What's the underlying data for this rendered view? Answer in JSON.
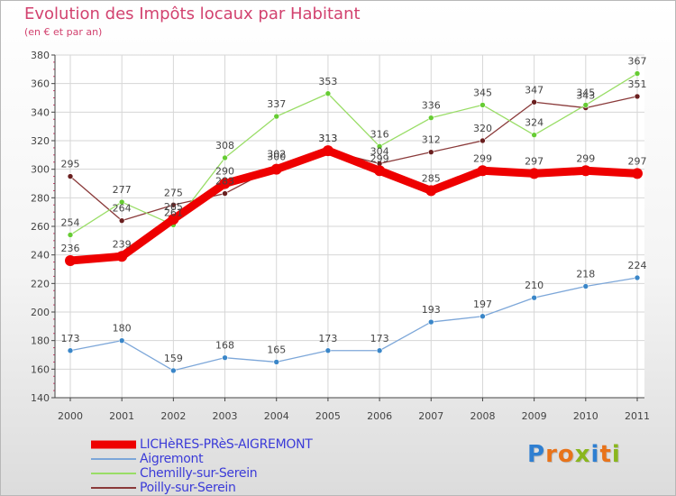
{
  "title": "Evolution des Impôts locaux par Habitant",
  "subtitle": "(en € et par an)",
  "logo": {
    "text": "Proxiti",
    "letters": [
      "P",
      "r",
      "o",
      "x",
      "i",
      "t",
      "i"
    ]
  },
  "colors": {
    "title": "#d2426f",
    "axis": "#444444",
    "grid": "#d6d6d6",
    "label": "#444444",
    "legend_text": "#3b3bd8",
    "logo": [
      "#2f7fd1",
      "#e8731a",
      "#e8731a",
      "#8ab61e",
      "#2f7fd1",
      "#e8731a",
      "#8ab61e"
    ]
  },
  "chart_data": {
    "type": "line",
    "title": "Evolution des Impôts locaux par Habitant",
    "subtitle": "(en € et par an)",
    "xlabel": "",
    "ylabel": "",
    "x": [
      "2000",
      "2001",
      "2002",
      "2003",
      "2004",
      "2005",
      "2006",
      "2007",
      "2008",
      "2009",
      "2010",
      "2011"
    ],
    "ylim": [
      140,
      380
    ],
    "yticks": [
      140,
      160,
      180,
      200,
      220,
      240,
      260,
      280,
      300,
      320,
      340,
      360,
      380
    ],
    "grid": true,
    "legend_position": "bottom-left",
    "series": [
      {
        "name": "LICHèRES-PRèS-AIGREMONT",
        "color": "#ee0000",
        "marker_color": "#ee0000",
        "style": "thick",
        "values": [
          236,
          239,
          265,
          290,
          300,
          313,
          299,
          285,
          299,
          297,
          299,
          297
        ],
        "labels": [
          "236",
          "239",
          "265",
          "290",
          "300",
          "313",
          "299",
          "285",
          "299",
          "297",
          "299",
          "297"
        ]
      },
      {
        "name": "Aigremont",
        "color": "#7da7d9",
        "marker_color": "#3a86c8",
        "style": "thin",
        "values": [
          173,
          180,
          159,
          168,
          165,
          173,
          173,
          193,
          197,
          210,
          218,
          224
        ],
        "labels": [
          "173",
          "180",
          "159",
          "168",
          "165",
          "173",
          "173",
          "193",
          "197",
          "210",
          "218",
          "224"
        ]
      },
      {
        "name": "Chemilly-sur-Serein",
        "color": "#99dd66",
        "marker_color": "#66cc33",
        "style": "thin",
        "values": [
          254,
          277,
          261,
          308,
          337,
          353,
          316,
          336,
          345,
          324,
          345,
          367
        ],
        "labels": [
          "254",
          "277",
          "261",
          "308",
          "337",
          "353",
          "316",
          "336",
          "345",
          "324",
          "345",
          "367"
        ]
      },
      {
        "name": "Poilly-sur-Serein",
        "color": "#8a3a3a",
        "marker_color": "#6a1f1f",
        "style": "thin",
        "values": [
          295,
          264,
          275,
          283,
          302,
          313,
          304,
          312,
          320,
          347,
          343,
          351
        ],
        "labels": [
          "295",
          "264",
          "275",
          "283",
          "302",
          "313",
          "304",
          "312",
          "320",
          "347",
          "343",
          "351"
        ]
      }
    ]
  }
}
